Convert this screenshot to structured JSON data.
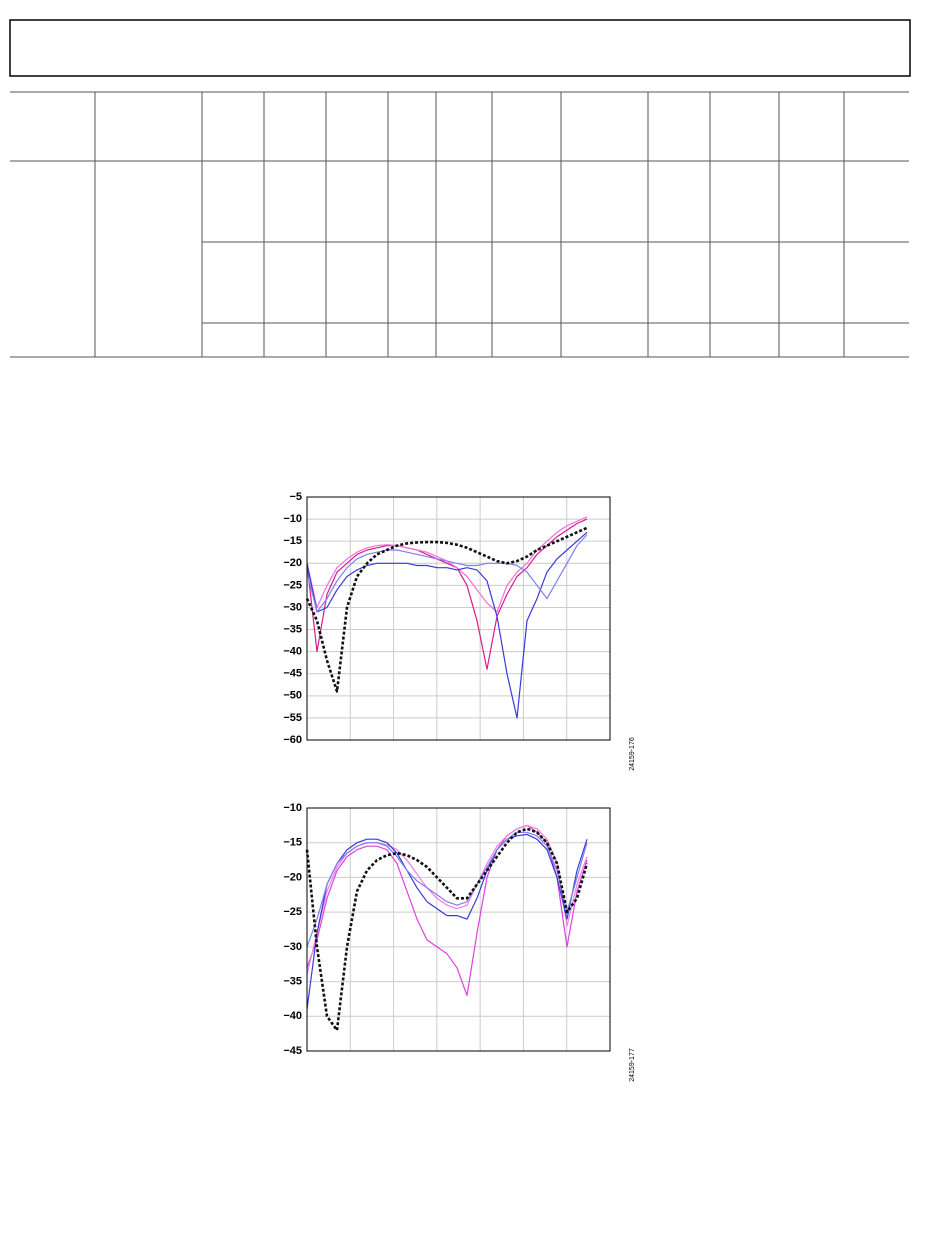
{
  "chart_data": [
    {
      "type": "line",
      "figure_id": "24159-176",
      "ylim": [
        -60,
        -5
      ],
      "yticks": [
        {
          "value": -5,
          "label": "−5"
        },
        {
          "value": -10,
          "label": "−10"
        },
        {
          "value": -15,
          "label": "−15"
        },
        {
          "value": -20,
          "label": "−20"
        },
        {
          "value": -25,
          "label": "−25"
        },
        {
          "value": -30,
          "label": "−30"
        },
        {
          "value": -35,
          "label": "−35"
        },
        {
          "value": -40,
          "label": "−40"
        },
        {
          "value": -45,
          "label": "−45"
        },
        {
          "value": -50,
          "label": "−50"
        },
        {
          "value": -55,
          "label": "−55"
        },
        {
          "value": -60,
          "label": "−60"
        }
      ],
      "grid": true,
      "series": [
        {
          "color": "#d81b8c",
          "style": "solid",
          "values": [
            -20,
            -40,
            -27,
            -22,
            -20,
            -18,
            -17,
            -16.5,
            -16,
            -16,
            -16.5,
            -17,
            -18,
            -19,
            -20,
            -21,
            -25,
            -33,
            -44,
            -32,
            -27,
            -23,
            -21,
            -18,
            -16,
            -14,
            -12.5,
            -11,
            -10
          ]
        },
        {
          "color": "#f070e0",
          "style": "solid",
          "values": [
            -20,
            -30,
            -25,
            -21,
            -19,
            -17.5,
            -16.5,
            -16,
            -15.8,
            -16,
            -16.5,
            -17,
            -17.5,
            -18.5,
            -19.5,
            -21,
            -23,
            -26,
            -29,
            -31,
            -25,
            -22,
            -20,
            -17,
            -15,
            -13,
            -11.5,
            -10.5,
            -9.5
          ]
        },
        {
          "color": "#3a3ad8",
          "style": "solid",
          "values": [
            -20,
            -31,
            -30,
            -26,
            -23,
            -21.5,
            -20.5,
            -20,
            -20,
            -20,
            -20,
            -20.5,
            -20.5,
            -21,
            -21,
            -21.5,
            -21,
            -21.5,
            -24,
            -32,
            -45,
            -55,
            -33,
            -28,
            -22,
            -19,
            -17,
            -15,
            -13
          ]
        },
        {
          "color": "#8080e8",
          "style": "solid",
          "values": [
            -22,
            -31,
            -28,
            -24,
            -21,
            -19,
            -18,
            -17.5,
            -17,
            -17,
            -17.5,
            -18,
            -18.5,
            -19,
            -19.5,
            -20,
            -20.5,
            -20.5,
            -20,
            -20,
            -20,
            -20.5,
            -22,
            -25,
            -28,
            -24,
            -20,
            -16,
            -13.5
          ]
        },
        {
          "color": "#111111",
          "style": "dashed",
          "values": [
            -28,
            -33,
            -42,
            -49,
            -30,
            -23,
            -20,
            -18,
            -17,
            -16,
            -15.5,
            -15.3,
            -15.2,
            -15.2,
            -15.4,
            -15.8,
            -16.5,
            -17.5,
            -18.5,
            -19.5,
            -20,
            -19.5,
            -18.5,
            -17,
            -16,
            -15,
            -14,
            -13,
            -12
          ]
        }
      ]
    },
    {
      "type": "line",
      "figure_id": "24159-177",
      "ylim": [
        -45,
        -10
      ],
      "yticks": [
        {
          "value": -10,
          "label": "−10"
        },
        {
          "value": -15,
          "label": "−15"
        },
        {
          "value": -20,
          "label": "−20"
        },
        {
          "value": -25,
          "label": "−25"
        },
        {
          "value": -30,
          "label": "−30"
        },
        {
          "value": -35,
          "label": "−35"
        },
        {
          "value": -40,
          "label": "−40"
        },
        {
          "value": -45,
          "label": "−45"
        }
      ],
      "grid": true,
      "series": [
        {
          "color": "#e040e0",
          "style": "solid",
          "values": [
            -33,
            -29,
            -23,
            -19,
            -17,
            -16,
            -15.5,
            -15.5,
            -16,
            -18,
            -22,
            -26,
            -29,
            -30,
            -31,
            -33,
            -37,
            -28,
            -20,
            -16,
            -14,
            -13,
            -12.5,
            -13.5,
            -15,
            -20,
            -30,
            -22,
            -17.5
          ]
        },
        {
          "color": "#f080e0",
          "style": "solid",
          "values": [
            -34,
            -28,
            -22,
            -18.5,
            -16.5,
            -15.5,
            -15,
            -15,
            -15.3,
            -16,
            -17.5,
            -19.5,
            -21.5,
            -23,
            -24,
            -24.5,
            -24,
            -21,
            -18,
            -15.5,
            -14,
            -13,
            -12.5,
            -13,
            -14.5,
            -18,
            -27,
            -21,
            -17
          ]
        },
        {
          "color": "#3a3ad8",
          "style": "solid",
          "values": [
            -39,
            -28,
            -21,
            -18,
            -16,
            -15,
            -14.5,
            -14.5,
            -15,
            -16.5,
            -19,
            -21.5,
            -23.5,
            -24.5,
            -25.5,
            -25.5,
            -26,
            -23,
            -19,
            -16,
            -14.5,
            -14,
            -13.8,
            -14.5,
            -16,
            -20,
            -26,
            -19,
            -14.5
          ]
        },
        {
          "color": "#8080e8",
          "style": "solid",
          "values": [
            -30,
            -26,
            -21,
            -18,
            -16.5,
            -15.5,
            -15,
            -15,
            -15.5,
            -17,
            -19,
            -20.5,
            -21.5,
            -22.5,
            -23.5,
            -24,
            -23.5,
            -21,
            -18.5,
            -16,
            -14.5,
            -13.5,
            -13.5,
            -14,
            -15.5,
            -19,
            -25,
            -20,
            -15
          ]
        },
        {
          "color": "#111111",
          "style": "dashed",
          "values": [
            -16,
            -30,
            -40,
            -42,
            -30,
            -22,
            -19,
            -17.5,
            -16.8,
            -16.5,
            -16.8,
            -17.5,
            -18.5,
            -20,
            -21.5,
            -23,
            -23,
            -21,
            -19,
            -17,
            -15,
            -13.5,
            -13,
            -13.5,
            -15,
            -18,
            -25,
            -23,
            -18
          ]
        }
      ]
    }
  ]
}
